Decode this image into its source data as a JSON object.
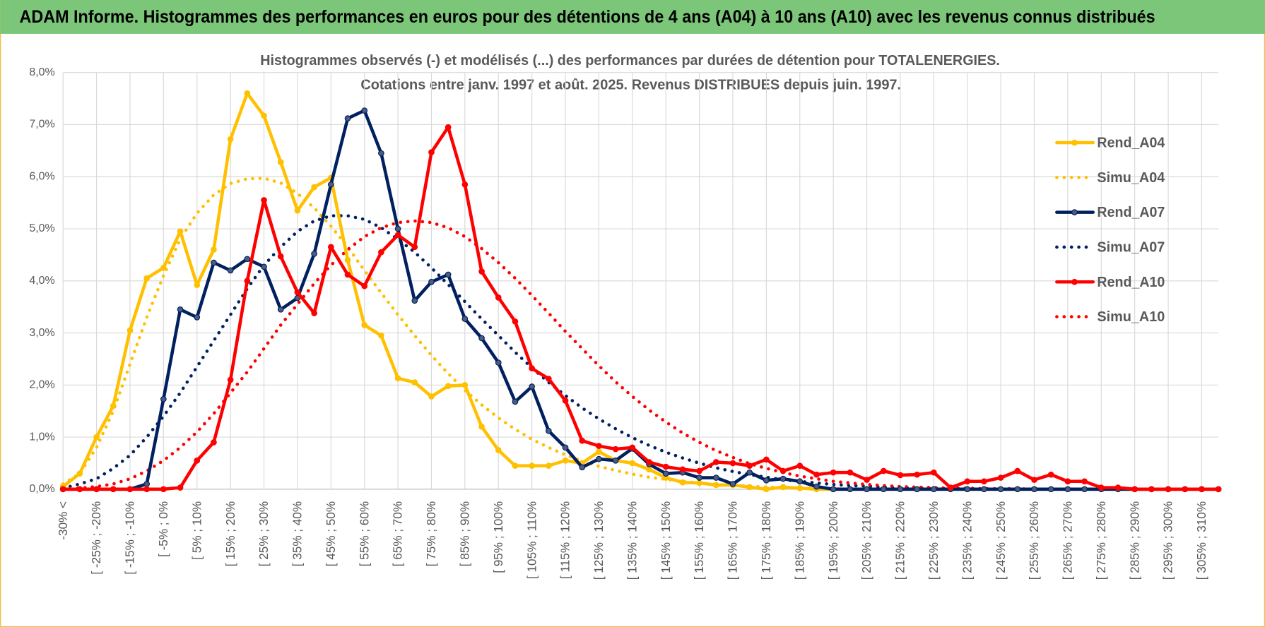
{
  "header": {
    "title": "ADAM Informe. Histogrammes des performances en euros pour des détentions de 4 ans (A04) à 10 ans (A10) avec les revenus connus distribués"
  },
  "chart_data": {
    "type": "line",
    "title": "Histogrammes observés (-) et modélisés (...) des performances par durées de détention pour TOTALENERGIES.",
    "subtitle": "Cotations entre janv. 1997 et août. 2025. Revenus DISTRIBUES depuis juin. 1997.",
    "categories": [
      "-30% <",
      null,
      "[ -25% ; -20%",
      null,
      "[ -15% ; -10%",
      null,
      "[ -5% ; 0%",
      null,
      "[ 5% ; 10%",
      null,
      "[ 15% ; 20%",
      null,
      "[ 25% ; 30%",
      null,
      "[ 35% ; 40%",
      null,
      "[ 45% ; 50%",
      null,
      "[ 55% ; 60%",
      null,
      "[ 65% ; 70%",
      null,
      "[ 75% ; 80%",
      null,
      "[ 85% ; 90%",
      null,
      "[ 95% ; 100%",
      null,
      "[ 105% ; 110%",
      null,
      "[ 115% ; 120%",
      null,
      "[ 125% ; 130%",
      null,
      "[ 135% ; 140%",
      null,
      "[ 145% ; 150%",
      null,
      "[ 155% ; 160%",
      null,
      "[ 165% ; 170%",
      null,
      "[ 175% ; 180%",
      null,
      "[ 185% ; 190%",
      null,
      "[ 195% ; 200%",
      null,
      "[ 205% ; 210%",
      null,
      "[ 215% ; 220%",
      null,
      "[ 225% ; 230%",
      null,
      "[ 235% ; 240%",
      null,
      "[ 245% ; 250%",
      null,
      "[ 255% ; 260%",
      null,
      "[ 265% ; 270%",
      null,
      "[ 275% ; 280%",
      null,
      "[ 285% ; 290%",
      null,
      "[ 295% ; 300%",
      null,
      "[ 305% ; 310%",
      null
    ],
    "series": [
      {
        "name": "Rend_A04",
        "color": "#FFC000",
        "style": "solid",
        "marker": true,
        "values": [
          0.05,
          0.3,
          1.0,
          1.6,
          3.05,
          4.05,
          4.25,
          4.95,
          3.92,
          4.6,
          6.72,
          7.6,
          7.17,
          6.28,
          5.35,
          5.8,
          5.98,
          4.4,
          3.15,
          2.95,
          2.13,
          2.05,
          1.78,
          1.98,
          2.0,
          1.2,
          0.75,
          0.45,
          0.45,
          0.45,
          0.55,
          0.5,
          0.72,
          0.55,
          0.5,
          0.38,
          0.22,
          0.13,
          0.12,
          0.08,
          0.08,
          0.04,
          0,
          0.04,
          0.02,
          0,
          0,
          0,
          0,
          0,
          0,
          0,
          0,
          0,
          0,
          0,
          0,
          0,
          0,
          0,
          0,
          0,
          0,
          0,
          0,
          0,
          0,
          0,
          0,
          0
        ]
      },
      {
        "name": "Simu_A04",
        "color": "#FFC000",
        "style": "dotted",
        "marker": false,
        "values": [
          0.1,
          0.3,
          0.8,
          1.5,
          2.4,
          3.3,
          4.1,
          4.8,
          5.3,
          5.65,
          5.87,
          5.96,
          5.97,
          5.88,
          5.68,
          5.4,
          5.05,
          4.65,
          4.2,
          3.77,
          3.35,
          2.95,
          2.57,
          2.22,
          1.9,
          1.62,
          1.37,
          1.15,
          0.96,
          0.8,
          0.66,
          0.54,
          0.44,
          0.36,
          0.29,
          0.23,
          0.19,
          0.15,
          0.12,
          0.09,
          0.07,
          0.06,
          0.04,
          0.03,
          0.02,
          0.02,
          0.01,
          0,
          0,
          0,
          0,
          0,
          0,
          0,
          0,
          0,
          0,
          0,
          0,
          0,
          0,
          0,
          0,
          0,
          0,
          0,
          0,
          0,
          0,
          0
        ]
      },
      {
        "name": "Rend_A07",
        "color": "#002060",
        "style": "solid",
        "marker": true,
        "values": [
          0,
          0,
          0,
          0,
          0,
          0.1,
          1.73,
          3.45,
          3.3,
          4.35,
          4.2,
          4.42,
          4.27,
          3.45,
          3.67,
          4.52,
          5.85,
          7.12,
          7.27,
          6.45,
          5.0,
          3.62,
          3.98,
          4.12,
          3.27,
          2.9,
          2.43,
          1.68,
          1.97,
          1.12,
          0.8,
          0.42,
          0.58,
          0.55,
          0.78,
          0.48,
          0.3,
          0.32,
          0.22,
          0.22,
          0.1,
          0.32,
          0.17,
          0.2,
          0.15,
          0.05,
          0,
          0,
          0,
          0,
          0,
          0,
          0,
          0,
          0,
          0,
          0,
          0,
          0,
          0,
          0,
          0,
          0,
          0,
          0,
          0,
          0,
          0,
          0,
          0
        ]
      },
      {
        "name": "Simu_A07",
        "color": "#002060",
        "style": "dotted",
        "marker": false,
        "values": [
          0.02,
          0.1,
          0.2,
          0.4,
          0.65,
          1.0,
          1.4,
          1.85,
          2.35,
          2.85,
          3.35,
          3.85,
          4.3,
          4.65,
          4.95,
          5.15,
          5.25,
          5.25,
          5.18,
          5.02,
          4.8,
          4.55,
          4.25,
          3.93,
          3.6,
          3.27,
          2.95,
          2.63,
          2.33,
          2.05,
          1.8,
          1.56,
          1.35,
          1.16,
          0.99,
          0.84,
          0.71,
          0.6,
          0.5,
          0.41,
          0.34,
          0.28,
          0.23,
          0.18,
          0.15,
          0.12,
          0.09,
          0.07,
          0.06,
          0.04,
          0.03,
          0.02,
          0.02,
          0.01,
          0.01,
          0,
          0,
          0,
          0,
          0,
          0,
          0,
          0,
          0,
          0,
          0,
          0,
          0,
          0,
          0
        ]
      },
      {
        "name": "Rend_A10",
        "color": "#FF0000",
        "style": "solid",
        "marker": true,
        "values": [
          0,
          0,
          0,
          0,
          0,
          0,
          0,
          0.03,
          0.55,
          0.9,
          2.1,
          4.0,
          5.55,
          4.47,
          3.78,
          3.38,
          4.65,
          4.12,
          3.9,
          4.55,
          4.88,
          4.65,
          6.47,
          6.95,
          5.85,
          4.18,
          3.68,
          3.22,
          2.32,
          2.12,
          1.7,
          0.93,
          0.83,
          0.77,
          0.8,
          0.52,
          0.43,
          0.38,
          0.35,
          0.52,
          0.5,
          0.45,
          0.57,
          0.35,
          0.45,
          0.28,
          0.32,
          0.32,
          0.18,
          0.35,
          0.27,
          0.28,
          0.32,
          0.03,
          0.15,
          0.15,
          0.22,
          0.35,
          0.18,
          0.28,
          0.15,
          0.15,
          0.03,
          0.03,
          0,
          0,
          0,
          0,
          0,
          0
        ]
      },
      {
        "name": "Simu_A10",
        "color": "#FF0000",
        "style": "dotted",
        "marker": false,
        "values": [
          0,
          0.02,
          0.05,
          0.1,
          0.2,
          0.35,
          0.55,
          0.8,
          1.1,
          1.45,
          1.85,
          2.25,
          2.7,
          3.15,
          3.55,
          3.95,
          4.3,
          4.6,
          4.85,
          5.02,
          5.12,
          5.15,
          5.12,
          5.02,
          4.85,
          4.62,
          4.35,
          4.05,
          3.72,
          3.38,
          3.03,
          2.7,
          2.37,
          2.06,
          1.78,
          1.52,
          1.29,
          1.08,
          0.9,
          0.74,
          0.61,
          0.49,
          0.4,
          0.32,
          0.25,
          0.2,
          0.15,
          0.12,
          0.09,
          0.07,
          0.05,
          0.04,
          0.03,
          0.02,
          0.02,
          0.01,
          0.01,
          0.01,
          0,
          0,
          0,
          0,
          0,
          0,
          0,
          0,
          0,
          0,
          0,
          0
        ]
      }
    ],
    "ylim": [
      0,
      8
    ],
    "yticks": [
      {
        "value": 0,
        "label": "0,0%"
      },
      {
        "value": 1,
        "label": "1,0%"
      },
      {
        "value": 2,
        "label": "2,0%"
      },
      {
        "value": 3,
        "label": "3,0%"
      },
      {
        "value": 4,
        "label": "4,0%"
      },
      {
        "value": 5,
        "label": "5,0%"
      },
      {
        "value": 6,
        "label": "6,0%"
      },
      {
        "value": 7,
        "label": "7,0%"
      },
      {
        "value": 8,
        "label": "8,0%"
      }
    ],
    "grid": true,
    "legend": "right"
  }
}
